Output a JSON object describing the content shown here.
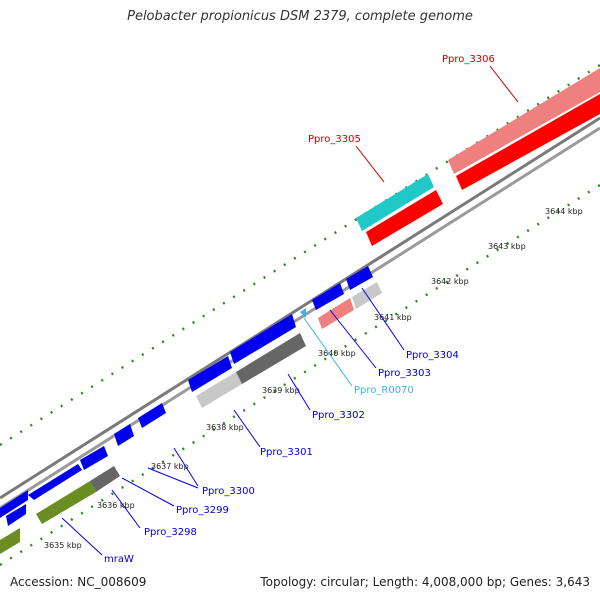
{
  "title": "Pelobacter propionicus DSM 2379, complete genome",
  "accession": "Accession: NC_008609",
  "summary": "Topology: circular; Length: 4,008,000 bp; Genes: 3,643",
  "colors": {
    "backbone": "#8c8c8c",
    "ticks_green": "#2e8b1e",
    "gene_blue": "#0000ee",
    "gene_red": "#ff0000",
    "gene_pink": "#f08080",
    "gene_cyan": "#20c8c8",
    "gene_gray": "#666666",
    "gene_lightgray": "#c8c8c8",
    "gene_olive": "#6b8e23",
    "rna_lightblue": "#3cb4e6"
  },
  "scale": {
    "labels": [
      "3635 kbp",
      "3636 kbp",
      "3637 kbp",
      "3638 kbp",
      "3639 kbp",
      "3640 kbp",
      "3641 kbp",
      "3642 kbp",
      "3643 kbp",
      "3644 kbp"
    ]
  },
  "genes": [
    {
      "label": "mraW",
      "color": "blue"
    },
    {
      "label": "Ppro_3298",
      "color": "blue"
    },
    {
      "label": "Ppro_3299",
      "color": "blue"
    },
    {
      "label": "Ppro_3300",
      "color": "blue"
    },
    {
      "label": "Ppro_3301",
      "color": "blue"
    },
    {
      "label": "Ppro_3302",
      "color": "blue"
    },
    {
      "label": "Ppro_R0070",
      "color": "lightblue"
    },
    {
      "label": "Ppro_3303",
      "color": "blue"
    },
    {
      "label": "Ppro_3304",
      "color": "blue"
    },
    {
      "label": "Ppro_3305",
      "color": "red"
    },
    {
      "label": "Ppro_3306",
      "color": "red"
    }
  ]
}
